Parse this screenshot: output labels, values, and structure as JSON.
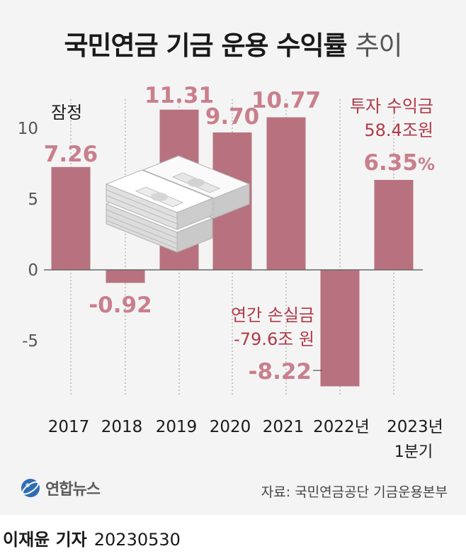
{
  "title": {
    "main": "국민연금 기금 운용 수익률",
    "suffix": "추이"
  },
  "chart_data": {
    "type": "bar",
    "categories": [
      "2017",
      "2018",
      "2019",
      "2020",
      "2021",
      "2022년",
      "2023년"
    ],
    "category_sublabels": [
      "",
      "",
      "",
      "",
      "",
      "",
      "1분기"
    ],
    "values": [
      7.26,
      -0.92,
      11.31,
      9.7,
      10.77,
      -8.22,
      6.35
    ],
    "value_labels": [
      "7.26",
      "-0.92",
      "11.31",
      "9.70",
      "10.77",
      "-8.22",
      "6.35"
    ],
    "ylim": [
      -8.5,
      12
    ],
    "yticks": [
      10,
      5,
      0,
      -5
    ],
    "bar_color": "#b8727f",
    "label_color": "#c97f8c",
    "annotations": {
      "provisional": "잠정",
      "profit_label": "투자 수익금",
      "profit_amount": "58.4조원",
      "profit_percent": "%",
      "loss_label": "연간 손실금",
      "loss_amount": "-79.6조 원"
    }
  },
  "logo": "연합뉴스",
  "source": "자료: 국민연금공단 기금운용본부",
  "byline": {
    "name": "이재윤 기자",
    "date": "20230530"
  }
}
